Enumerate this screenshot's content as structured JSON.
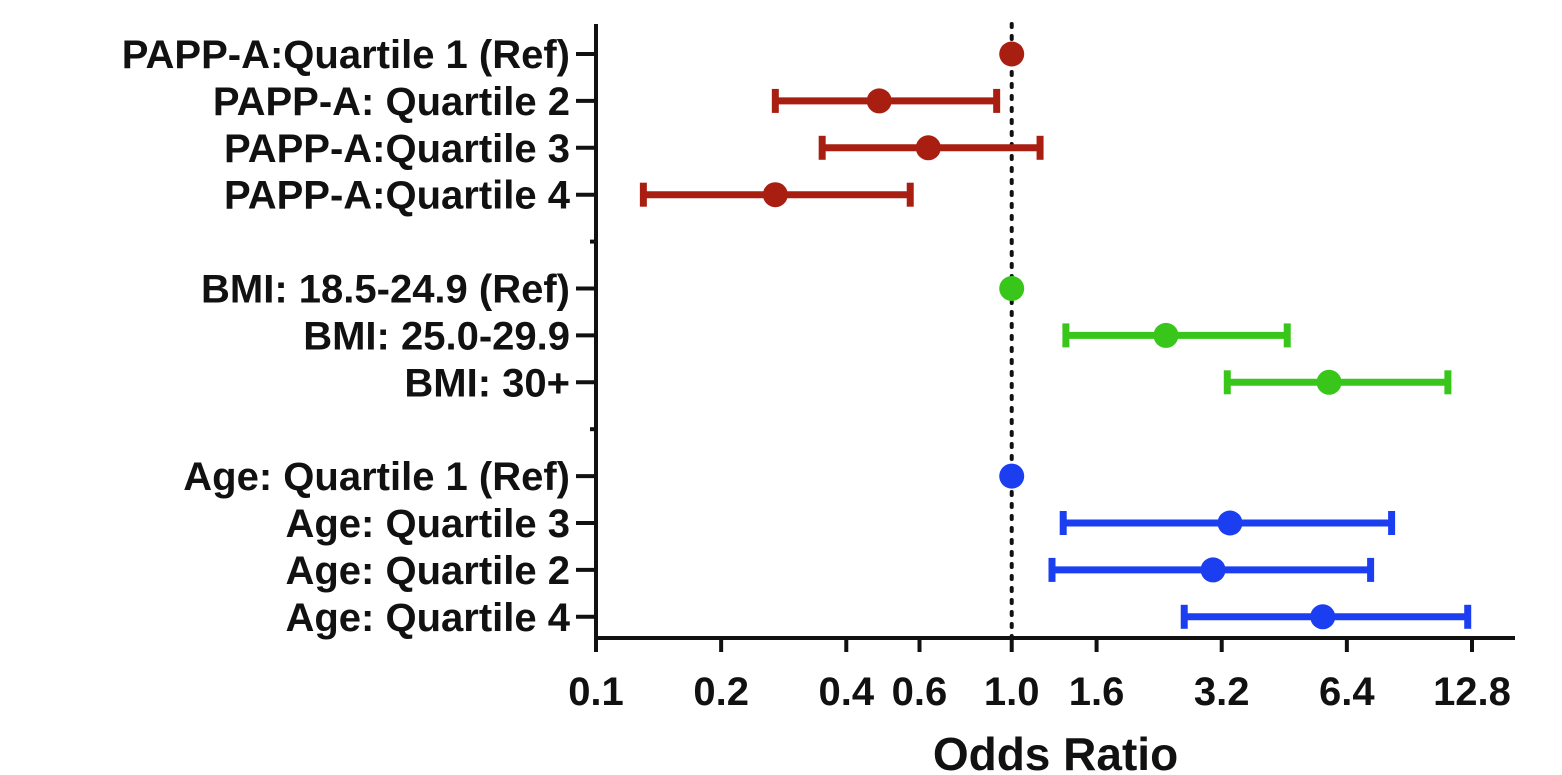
{
  "chart_data": {
    "type": "forest",
    "xlabel": "Odds Ratio",
    "x_scale": "log2",
    "xlim": [
      0.1,
      12.8
    ],
    "x_ticks": [
      {
        "value": 0.1,
        "label": "0.1"
      },
      {
        "value": 0.2,
        "label": "0.2"
      },
      {
        "value": 0.4,
        "label": "0.4"
      },
      {
        "value": 0.6,
        "label": "0.6"
      },
      {
        "value": 1.0,
        "label": "1.0"
      },
      {
        "value": 1.6,
        "label": "1.6"
      },
      {
        "value": 3.2,
        "label": "3.2"
      },
      {
        "value": 6.4,
        "label": "6.4"
      },
      {
        "value": 12.8,
        "label": "12.8"
      }
    ],
    "reference_line": 1.0,
    "groups": [
      {
        "color": "#a81f12",
        "rows": [
          {
            "label": "PAPP-A:Quartile 1 (Ref)",
            "or": 1.0,
            "lo": null,
            "hi": null
          },
          {
            "label": "PAPP-A: Quartile 2",
            "or": 0.48,
            "lo": 0.27,
            "hi": 0.92
          },
          {
            "label": "PAPP-A:Quartile 3",
            "or": 0.63,
            "lo": 0.35,
            "hi": 1.17
          },
          {
            "label": "PAPP-A:Quartile 4",
            "or": 0.27,
            "lo": 0.13,
            "hi": 0.57
          }
        ]
      },
      {
        "color": "#38c61a",
        "rows": [
          {
            "label": "BMI: 18.5-24.9 (Ref)",
            "or": 1.0,
            "lo": null,
            "hi": null
          },
          {
            "label": "BMI: 25.0-29.9",
            "or": 2.35,
            "lo": 1.35,
            "hi": 4.6
          },
          {
            "label": "BMI: 30+",
            "or": 5.8,
            "lo": 3.3,
            "hi": 11.2
          }
        ]
      },
      {
        "color": "#1a3ef0",
        "rows": [
          {
            "label": "Age: Quartile 1 (Ref)",
            "or": 1.0,
            "lo": null,
            "hi": null
          },
          {
            "label": "Age: Quartile 3",
            "or": 3.35,
            "lo": 1.33,
            "hi": 8.2
          },
          {
            "label": "Age: Quartile 2",
            "or": 3.05,
            "lo": 1.25,
            "hi": 7.3
          },
          {
            "label": "Age: Quartile 4",
            "or": 5.6,
            "lo": 2.6,
            "hi": 12.5
          }
        ]
      }
    ]
  }
}
